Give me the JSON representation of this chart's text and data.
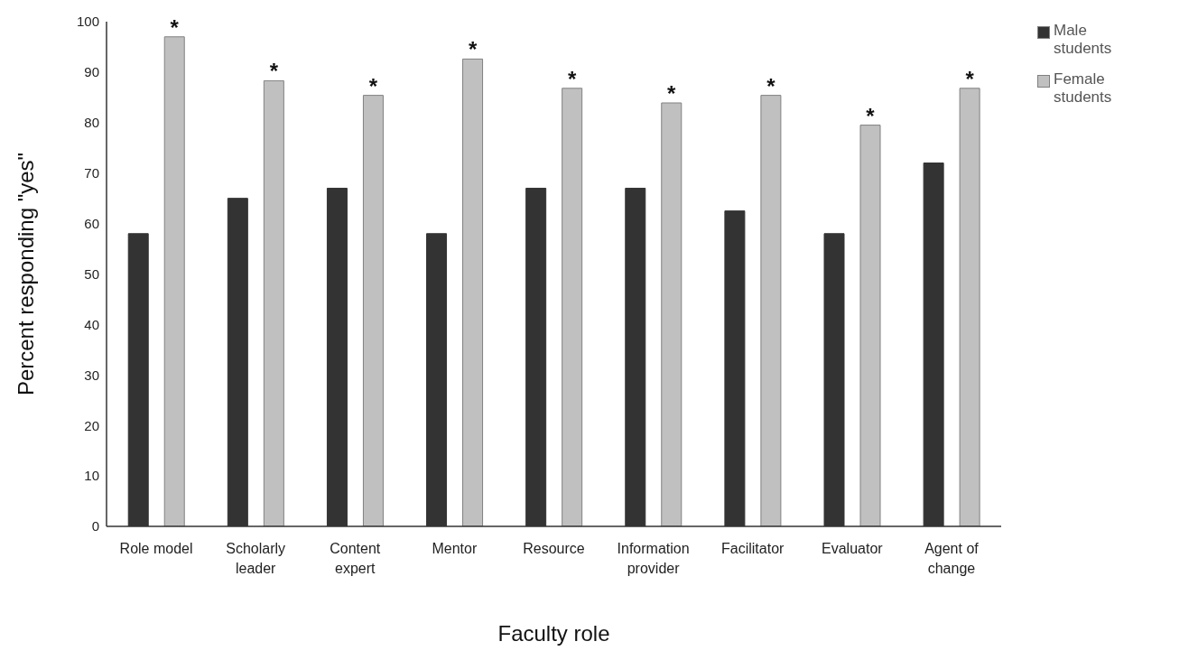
{
  "chart_data": {
    "type": "bar",
    "xlabel": "Faculty role",
    "ylabel": "Percent responding \"yes\"",
    "categories": [
      "Role model",
      "Scholarly leader",
      "Content expert",
      "Mentor",
      "Resource",
      "Information provider",
      "Facilitator",
      "Evaluator",
      "Agent of change"
    ],
    "series": [
      {
        "name": "Male students",
        "color": "#333333",
        "values": [
          58,
          65,
          67,
          58,
          67,
          67,
          62.5,
          58,
          72
        ]
      },
      {
        "name": "Female students",
        "color": "#c0c0c0",
        "values": [
          97,
          88.3,
          85.4,
          92.6,
          86.8,
          83.9,
          85.4,
          79.5,
          86.8
        ]
      }
    ],
    "annotations": [
      "*",
      "*",
      "*",
      "*",
      "*",
      "*",
      "*",
      "*",
      "*"
    ],
    "ylim": [
      0,
      100
    ],
    "yticks": [
      0,
      10,
      20,
      30,
      40,
      50,
      60,
      70,
      80,
      90,
      100
    ],
    "grid": false,
    "legend": "top right"
  }
}
